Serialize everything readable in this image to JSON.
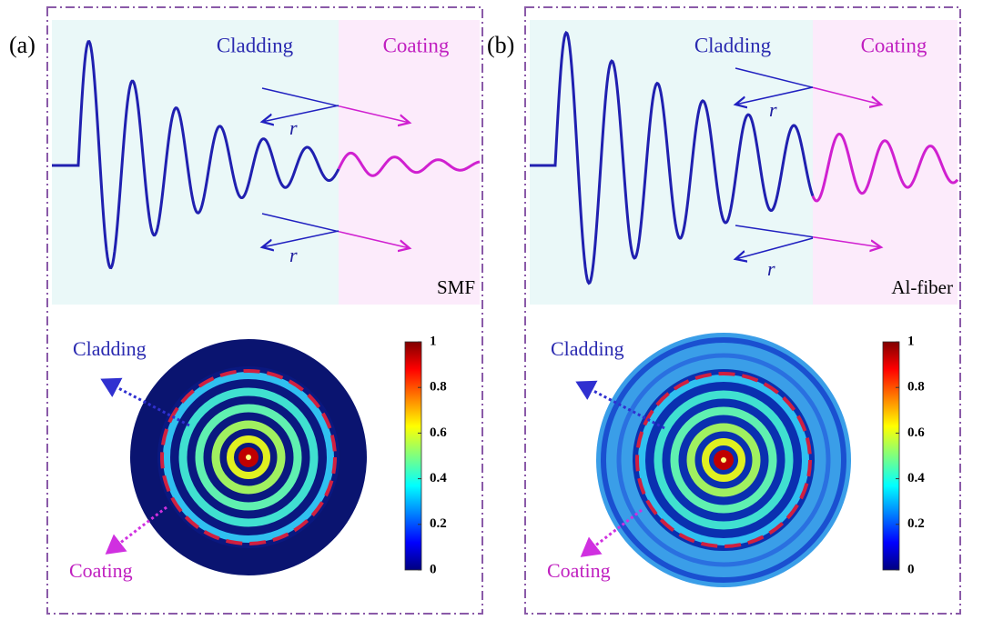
{
  "panels": [
    {
      "label": "(a)",
      "cladding": "Cladding",
      "coating": "Coating",
      "r_upper": "r",
      "r_lower": "r",
      "fiber": "SMF",
      "map_cladding": "Cladding",
      "map_coating": "Coating",
      "colorbar_ticks": [
        1,
        0.8,
        0.6,
        0.4,
        0.2,
        0
      ]
    },
    {
      "label": "(b)",
      "cladding": "Cladding",
      "coating": "Coating",
      "r_upper": "r",
      "r_lower": "r",
      "fiber": "Al-fiber",
      "map_cladding": "Cladding",
      "map_coating": "Coating",
      "colorbar_ticks": [
        1,
        0.8,
        0.6,
        0.4,
        0.2,
        0
      ]
    }
  ]
}
